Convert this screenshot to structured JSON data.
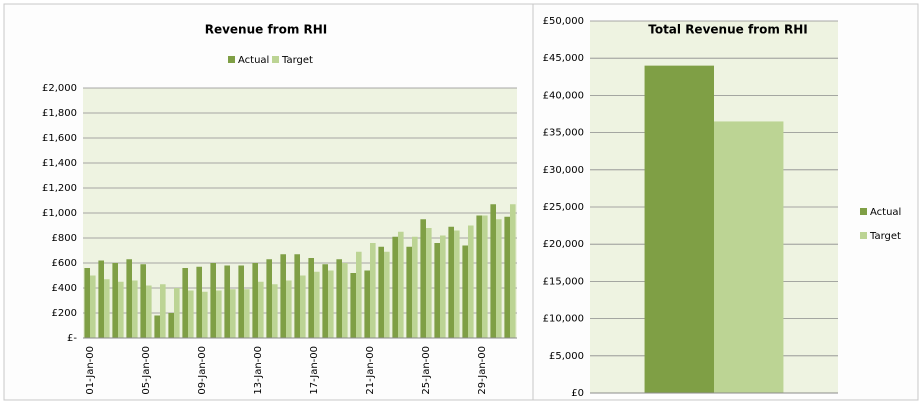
{
  "chart_data": [
    {
      "type": "bar",
      "title": "Revenue from RHI",
      "categories": [
        "01-Jan-00",
        null,
        null,
        null,
        "05-Jan-00",
        null,
        null,
        null,
        "09-Jan-00",
        null,
        null,
        null,
        "13-Jan-00",
        null,
        null,
        null,
        "17-Jan-00",
        null,
        null,
        null,
        "21-Jan-00",
        null,
        null,
        null,
        "25-Jan-00",
        null,
        null,
        null,
        "29-Jan-00",
        null,
        null
      ],
      "series": [
        {
          "name": "Actual",
          "color": "#7f9f45",
          "values": [
            560,
            620,
            600,
            630,
            590,
            180,
            200,
            560,
            570,
            600,
            580,
            580,
            600,
            630,
            670,
            670,
            640,
            590,
            630,
            520,
            540,
            730,
            810,
            730,
            950,
            760,
            890,
            740,
            980,
            1070,
            970
          ]
        },
        {
          "name": "Target",
          "color": "#bcd494",
          "values": [
            500,
            470,
            450,
            460,
            420,
            430,
            400,
            380,
            370,
            380,
            390,
            390,
            450,
            430,
            460,
            500,
            530,
            540,
            600,
            690,
            760,
            690,
            850,
            810,
            880,
            820,
            860,
            900,
            980,
            950,
            1070
          ]
        }
      ],
      "ylim": [
        0,
        2000
      ],
      "yticks": [
        {
          "value": 0,
          "label": "£-"
        },
        {
          "value": 200,
          "label": "£200"
        },
        {
          "value": 400,
          "label": "£400"
        },
        {
          "value": 600,
          "label": "£600"
        },
        {
          "value": 800,
          "label": "£800"
        },
        {
          "value": 1000,
          "label": "£1,000"
        },
        {
          "value": 1200,
          "label": "£1,200"
        },
        {
          "value": 1400,
          "label": "£1,400"
        },
        {
          "value": 1600,
          "label": "£1,600"
        },
        {
          "value": 1800,
          "label": "£1,800"
        },
        {
          "value": 2000,
          "label": "£2,000"
        }
      ],
      "grid": true,
      "legend": "top"
    },
    {
      "type": "bar",
      "title": "Total Revenue from RHI",
      "categories": [
        null
      ],
      "series": [
        {
          "name": "Actual",
          "color": "#7f9f45",
          "values": [
            44000
          ]
        },
        {
          "name": "Target",
          "color": "#bcd494",
          "values": [
            36500
          ]
        }
      ],
      "ylim": [
        0,
        50000
      ],
      "yticks": [
        {
          "value": 0,
          "label": "£0"
        },
        {
          "value": 5000,
          "label": "£5,000"
        },
        {
          "value": 10000,
          "label": "£10,000"
        },
        {
          "value": 15000,
          "label": "£15,000"
        },
        {
          "value": 20000,
          "label": "£20,000"
        },
        {
          "value": 25000,
          "label": "£25,000"
        },
        {
          "value": 30000,
          "label": "£30,000"
        },
        {
          "value": 35000,
          "label": "£35,000"
        },
        {
          "value": 40000,
          "label": "£40,000"
        },
        {
          "value": 45000,
          "label": "£45,000"
        },
        {
          "value": 50000,
          "label": "£50,000"
        }
      ],
      "grid": true,
      "legend": "right"
    }
  ]
}
